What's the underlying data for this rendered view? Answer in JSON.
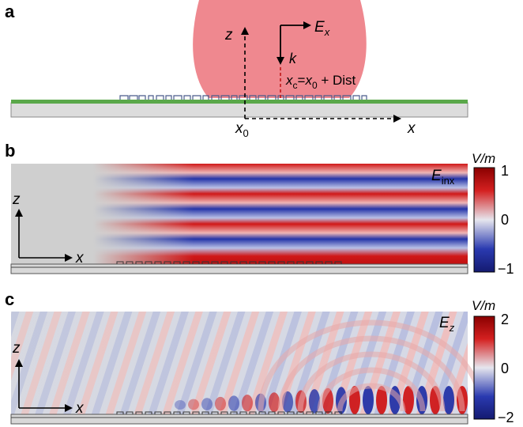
{
  "panels": {
    "a": {
      "label": "a",
      "axis_z": "z",
      "axis_x": "x",
      "x0_base": "x",
      "x0_sub": "0",
      "field_base": "E",
      "field_sub": "x",
      "k_label": "k",
      "xc_base": "x",
      "xc_sub": "c",
      "xc_eq": "=",
      "xc_x": "x",
      "xc_x_sub": "0",
      "xc_rest": " + Dist"
    },
    "b": {
      "label": "b",
      "field_base": "E",
      "field_sub": "inx",
      "axis_z": "z",
      "axis_x": "x",
      "colorbar": {
        "unit": "V/m",
        "max": "1",
        "mid": "0",
        "min": "−1"
      }
    },
    "c": {
      "label": "c",
      "field_base": "E",
      "field_sub": "z",
      "axis_z": "z",
      "axis_x": "x",
      "colorbar": {
        "unit": "V/m",
        "max": "2",
        "mid": "0",
        "min": "−2"
      }
    }
  },
  "colors": {
    "beam": "#ee7e86",
    "positive": "#d01818",
    "negative": "#1e2ea4",
    "background_field": "#cfcfcf",
    "substrate": "#d8d8d8",
    "green_layer": "#5aa84a",
    "grating": "#4a5c8c"
  }
}
